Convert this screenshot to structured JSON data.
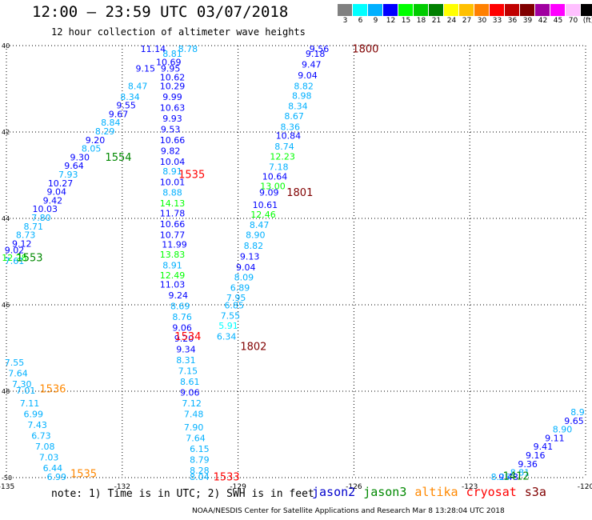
{
  "header": {
    "title": "12:00 — 23:59 UTC 03/07/2018",
    "subtitle": "12 hour collection of altimeter wave heights"
  },
  "color_legend": {
    "swatches": [
      "#808080",
      "#00ffff",
      "#00b0ff",
      "#0000ff",
      "#00ff00",
      "#00cc00",
      "#008000",
      "#ffff00",
      "#ffc000",
      "#ff8000",
      "#ff0000",
      "#c00000",
      "#800000",
      "#a000a0",
      "#ff00ff",
      "#ffc0ff",
      "#000000"
    ],
    "labels": [
      "3",
      "6",
      "9",
      "12",
      "15",
      "18",
      "21",
      "24",
      "27",
      "30",
      "33",
      "36",
      "39",
      "42",
      "45",
      "70",
      "(ft)"
    ]
  },
  "note": "note: 1) Time is in UTC; 2) SWH is in feet",
  "satellites": [
    {
      "name": "jason2",
      "color": "#0000cc"
    },
    {
      "name": "jason3",
      "color": "#008800"
    },
    {
      "name": "altika",
      "color": "#ff8800"
    },
    {
      "name": "cryosat",
      "color": "#ff0000"
    },
    {
      "name": "s3a",
      "color": "#800000"
    }
  ],
  "footer": "NOAA/NESDIS Center for Satellite Applications and Research   Mar  8 13:28:04 UTC 2018",
  "chart_data": {
    "type": "scatter",
    "xlim": [
      -135,
      -120
    ],
    "ylim": [
      -50,
      -40
    ],
    "x_ticks": [
      -135,
      -132,
      -129,
      -126,
      -123,
      -120
    ],
    "x_tick_labels": [
      "-135",
      "-132",
      "-129",
      "-126",
      "-123",
      "-120"
    ],
    "y_ticks": [
      -40,
      -42,
      -44,
      -46,
      -48,
      -50
    ],
    "y_tick_labels": [
      "40",
      "42",
      "44",
      "46",
      "48",
      "-50"
    ],
    "grid": true,
    "color_scale_ft": [
      3,
      6,
      9,
      12,
      15,
      18,
      21,
      24,
      27,
      30,
      33,
      36,
      39,
      42,
      45,
      70
    ],
    "color_scale_colors": [
      "#808080",
      "#00ffff",
      "#00b0ff",
      "#0000ff",
      "#00ff00",
      "#00cc00",
      "#008000",
      "#ffff00",
      "#ffc000",
      "#ff8000",
      "#ff0000",
      "#c00000",
      "#800000",
      "#a000a0",
      "#ff00ff",
      "#ffc0ff",
      "#000000"
    ],
    "pass_labels": [
      {
        "text": "1800",
        "x": -125.7,
        "y": -40.03,
        "color": "#800000"
      },
      {
        "text": "1801",
        "x": -127.4,
        "y": -43.42,
        "color": "#800000"
      },
      {
        "text": "1802",
        "x": -128.6,
        "y": -46.98,
        "color": "#800000"
      },
      {
        "text": "1535",
        "x": -130.2,
        "y": -43.0,
        "color": "#ff0000"
      },
      {
        "text": "1534",
        "x": -130.3,
        "y": -46.75,
        "color": "#ff0000"
      },
      {
        "text": "1533",
        "x": -129.3,
        "y": -50.0,
        "color": "#ff0000"
      },
      {
        "text": "1554",
        "x": -132.1,
        "y": -42.6,
        "color": "#008800"
      },
      {
        "text": "1553",
        "x": -134.4,
        "y": -44.93,
        "color": "#008800"
      },
      {
        "text": "1536",
        "x": -133.8,
        "y": -47.96,
        "color": "#ff8800"
      },
      {
        "text": "1535",
        "x": -133.0,
        "y": -49.93,
        "color": "#ff8800"
      },
      {
        "text": "1412",
        "x": -121.8,
        "y": -49.98,
        "color": "#008800"
      }
    ],
    "series": [
      {
        "name": "pass 1800-1802",
        "values": [
          {
            "x": -126.9,
            "y": -40.03,
            "label": "9.56"
          },
          {
            "x": -127.0,
            "y": -40.2,
            "label": "9.18"
          },
          {
            "x": -127.1,
            "y": -40.45,
            "label": "9.47"
          },
          {
            "x": -127.2,
            "y": -40.7,
            "label": "9.04"
          },
          {
            "x": -127.3,
            "y": -40.95,
            "label": "8.82"
          },
          {
            "x": -127.35,
            "y": -41.18,
            "label": "8.98"
          },
          {
            "x": -127.45,
            "y": -41.42,
            "label": "8.34"
          },
          {
            "x": -127.55,
            "y": -41.65,
            "label": "8.67"
          },
          {
            "x": -127.65,
            "y": -41.9,
            "label": "8.36"
          },
          {
            "x": -127.7,
            "y": -42.1,
            "label": "10.84"
          },
          {
            "x": -127.8,
            "y": -42.35,
            "label": "8.74"
          },
          {
            "x": -127.85,
            "y": -42.58,
            "label": "12.23"
          },
          {
            "x": -127.95,
            "y": -42.82,
            "label": "7.18"
          },
          {
            "x": -128.05,
            "y": -43.05,
            "label": "10.64"
          },
          {
            "x": -128.1,
            "y": -43.27,
            "label": "13.00"
          },
          {
            "x": -128.2,
            "y": -43.42,
            "label": "9.09"
          },
          {
            "x": -128.3,
            "y": -43.7,
            "label": "10.61"
          },
          {
            "x": -128.35,
            "y": -43.93,
            "label": "12.46"
          },
          {
            "x": -128.45,
            "y": -44.17,
            "label": "8.47"
          },
          {
            "x": -128.55,
            "y": -44.4,
            "label": "8.90"
          },
          {
            "x": -128.6,
            "y": -44.65,
            "label": "8.82"
          },
          {
            "x": -128.7,
            "y": -44.9,
            "label": "9.13"
          },
          {
            "x": -128.8,
            "y": -45.15,
            "label": "9.04"
          },
          {
            "x": -128.85,
            "y": -45.38,
            "label": "8.09"
          },
          {
            "x": -128.95,
            "y": -45.62,
            "label": "6.89"
          },
          {
            "x": -129.05,
            "y": -45.85,
            "label": "7.95"
          },
          {
            "x": -129.1,
            "y": -46.03,
            "label": "6.85"
          },
          {
            "x": -129.2,
            "y": -46.27,
            "label": "7.55"
          },
          {
            "x": -129.25,
            "y": -46.5,
            "label": "5.91"
          },
          {
            "x": -129.3,
            "y": -46.75,
            "label": "6.34"
          }
        ]
      },
      {
        "name": "pass 1533-1535",
        "values": [
          {
            "x": -130.3,
            "y": -40.03,
            "label": "8.78"
          },
          {
            "x": -130.7,
            "y": -40.2,
            "label": "8.81"
          },
          {
            "x": -130.8,
            "y": -40.4,
            "label": "10.69"
          },
          {
            "x": -130.75,
            "y": -40.55,
            "label": "9.95"
          },
          {
            "x": -130.7,
            "y": -40.75,
            "label": "10.62"
          },
          {
            "x": -130.7,
            "y": -40.95,
            "label": "10.29"
          },
          {
            "x": -130.7,
            "y": -41.2,
            "label": "9.99"
          },
          {
            "x": -130.7,
            "y": -41.45,
            "label": "10.63"
          },
          {
            "x": -130.7,
            "y": -41.7,
            "label": "9.93"
          },
          {
            "x": -130.75,
            "y": -41.95,
            "label": "9.53"
          },
          {
            "x": -130.7,
            "y": -42.2,
            "label": "10.66"
          },
          {
            "x": -130.75,
            "y": -42.45,
            "label": "9.82"
          },
          {
            "x": -130.7,
            "y": -42.7,
            "label": "10.04"
          },
          {
            "x": -130.7,
            "y": -42.93,
            "label": "8.91"
          },
          {
            "x": -130.7,
            "y": -43.18,
            "label": "10.01"
          },
          {
            "x": -130.7,
            "y": -43.42,
            "label": "8.88"
          },
          {
            "x": -130.7,
            "y": -43.67,
            "label": "14.13"
          },
          {
            "x": -130.7,
            "y": -43.9,
            "label": "11.78"
          },
          {
            "x": -130.7,
            "y": -44.15,
            "label": "10.66"
          },
          {
            "x": -130.7,
            "y": -44.4,
            "label": "10.77"
          },
          {
            "x": -130.65,
            "y": -44.62,
            "label": "11.99"
          },
          {
            "x": -130.7,
            "y": -44.85,
            "label": "13.83"
          },
          {
            "x": -130.7,
            "y": -45.1,
            "label": "8.91"
          },
          {
            "x": -130.7,
            "y": -45.33,
            "label": "12.49"
          },
          {
            "x": -130.7,
            "y": -45.55,
            "label": "11.03"
          },
          {
            "x": -130.55,
            "y": -45.8,
            "label": "9.24"
          },
          {
            "x": -130.5,
            "y": -46.05,
            "label": "8.69"
          },
          {
            "x": -130.45,
            "y": -46.3,
            "label": "8.76"
          },
          {
            "x": -130.45,
            "y": -46.55,
            "label": "9.06"
          },
          {
            "x": -130.4,
            "y": -46.8,
            "label": "9.20"
          },
          {
            "x": -130.35,
            "y": -47.05,
            "label": "9.34"
          },
          {
            "x": -130.35,
            "y": -47.3,
            "label": "8.31"
          },
          {
            "x": -130.3,
            "y": -47.55,
            "label": "7.15"
          },
          {
            "x": -130.25,
            "y": -47.8,
            "label": "8.61"
          },
          {
            "x": -130.25,
            "y": -48.05,
            "label": "9.06"
          },
          {
            "x": -130.2,
            "y": -48.3,
            "label": "7.12"
          },
          {
            "x": -130.15,
            "y": -48.55,
            "label": "7.48"
          },
          {
            "x": -130.15,
            "y": -48.85,
            "label": "7.90"
          },
          {
            "x": -130.1,
            "y": -49.1,
            "label": "7.64"
          },
          {
            "x": -130.0,
            "y": -49.35,
            "label": "6.15"
          },
          {
            "x": -130.0,
            "y": -49.6,
            "label": "8.79"
          },
          {
            "x": -130.0,
            "y": -49.85,
            "label": "8.28"
          },
          {
            "x": -130.0,
            "y": -50.0,
            "label": "8.04"
          }
        ]
      },
      {
        "name": "pass 1553-1554",
        "values": [
          {
            "x": -131.2,
            "y": -40.03,
            "label": "11.14"
          },
          {
            "x": -131.4,
            "y": -40.55,
            "label": "9.15"
          },
          {
            "x": -131.6,
            "y": -40.95,
            "label": "8.47"
          },
          {
            "x": -131.8,
            "y": -41.2,
            "label": "8.34"
          },
          {
            "x": -131.9,
            "y": -41.4,
            "label": "9.55"
          },
          {
            "x": -132.1,
            "y": -41.6,
            "label": "9.67"
          },
          {
            "x": -132.3,
            "y": -41.8,
            "label": "8.84"
          },
          {
            "x": -132.45,
            "y": -42.0,
            "label": "8.29"
          },
          {
            "x": -132.7,
            "y": -42.2,
            "label": "9.20"
          },
          {
            "x": -132.8,
            "y": -42.4,
            "label": "8.05"
          },
          {
            "x": -133.1,
            "y": -42.6,
            "label": "9.30"
          },
          {
            "x": -133.25,
            "y": -42.8,
            "label": "9.64"
          },
          {
            "x": -133.4,
            "y": -43.0,
            "label": "7.93"
          },
          {
            "x": -133.6,
            "y": -43.2,
            "label": "10.27"
          },
          {
            "x": -133.7,
            "y": -43.4,
            "label": "9.04"
          },
          {
            "x": -133.8,
            "y": -43.6,
            "label": "9.42"
          },
          {
            "x": -134.0,
            "y": -43.8,
            "label": "10.03"
          },
          {
            "x": -134.1,
            "y": -44.0,
            "label": "7.80"
          },
          {
            "x": -134.3,
            "y": -44.2,
            "label": "8.71"
          },
          {
            "x": -134.5,
            "y": -44.4,
            "label": "8.73"
          },
          {
            "x": -134.6,
            "y": -44.6,
            "label": "9.12"
          },
          {
            "x": -134.8,
            "y": -44.75,
            "label": "9.02"
          },
          {
            "x": -134.9,
            "y": -44.93,
            "label": "12.28"
          },
          {
            "x": -135.0,
            "y": -45.0,
            "label": "7.61"
          }
        ]
      },
      {
        "name": "pass 1535-1536",
        "values": [
          {
            "x": -134.8,
            "y": -47.35,
            "label": "7.55"
          },
          {
            "x": -134.7,
            "y": -47.6,
            "label": "7.64"
          },
          {
            "x": -134.6,
            "y": -47.85,
            "label": "7.30"
          },
          {
            "x": -134.5,
            "y": -48.0,
            "label": "7.01"
          },
          {
            "x": -134.4,
            "y": -48.3,
            "label": "7.11"
          },
          {
            "x": -134.3,
            "y": -48.55,
            "label": "6.99"
          },
          {
            "x": -134.2,
            "y": -48.8,
            "label": "7.43"
          },
          {
            "x": -134.1,
            "y": -49.05,
            "label": "6.73"
          },
          {
            "x": -134.0,
            "y": -49.3,
            "label": "7.08"
          },
          {
            "x": -133.9,
            "y": -49.55,
            "label": "7.03"
          },
          {
            "x": -133.8,
            "y": -49.8,
            "label": "6.44"
          },
          {
            "x": -133.7,
            "y": -50.0,
            "label": "6.99"
          }
        ]
      },
      {
        "name": "pass 1412",
        "values": [
          {
            "x": -120.1,
            "y": -48.5,
            "label": "8.9"
          },
          {
            "x": -120.3,
            "y": -48.7,
            "label": "9.65"
          },
          {
            "x": -120.6,
            "y": -48.9,
            "label": "8.90"
          },
          {
            "x": -120.8,
            "y": -49.1,
            "label": "9.11"
          },
          {
            "x": -121.1,
            "y": -49.3,
            "label": "9.41"
          },
          {
            "x": -121.3,
            "y": -49.5,
            "label": "9.16"
          },
          {
            "x": -121.5,
            "y": -49.7,
            "label": "9.36"
          },
          {
            "x": -121.7,
            "y": -49.9,
            "label": "8.81"
          },
          {
            "x": -122.0,
            "y": -50.0,
            "label": "9.48"
          },
          {
            "x": -122.2,
            "y": -50.0,
            "label": "8.25"
          }
        ]
      }
    ]
  }
}
